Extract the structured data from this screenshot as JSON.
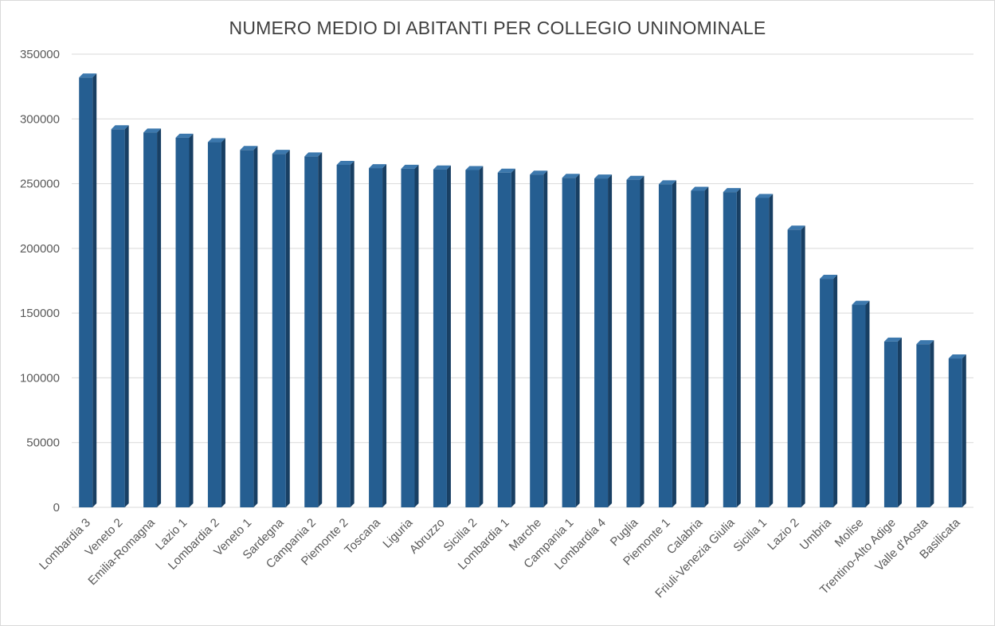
{
  "chart_data": {
    "type": "bar",
    "title": "NUMERO MEDIO DI ABITANTI PER COLLEGIO UNINOMINALE",
    "xlabel": "",
    "ylabel": "",
    "ylim": [
      0,
      350000
    ],
    "yticks": [
      "0",
      "50000",
      "100000",
      "150000",
      "200000",
      "250000",
      "300000",
      "350000"
    ],
    "grid": true,
    "legend": "none",
    "bar_color": "#255e91",
    "categories": [
      "Lombardia 3",
      "Veneto 2",
      "Emilia-Romagna",
      "Lazio 1",
      "Lombardia 2",
      "Veneto 1",
      "Sardegna",
      "Campania 2",
      "Piemonte 2",
      "Toscana",
      "Liguria",
      "Abruzzo",
      "Sicilia 2",
      "Lombardia 1",
      "Marche",
      "Campania 1",
      "Lombardia 4",
      "Puglia",
      "Piemonte 1",
      "Calabria",
      "Friuli-Venezia Giulia",
      "Sicilia 1",
      "Lazio 2",
      "Umbria",
      "Molise",
      "Trentino-Alto Adige",
      "Valle d'Aosta",
      "Basilicata"
    ],
    "values": [
      332000,
      292000,
      289500,
      285500,
      282000,
      276000,
      273000,
      271000,
      264500,
      262000,
      261500,
      261000,
      260500,
      258500,
      257000,
      254500,
      254000,
      253000,
      249500,
      244500,
      243500,
      239000,
      214500,
      176500,
      156500,
      128000,
      126000,
      115000
    ]
  }
}
